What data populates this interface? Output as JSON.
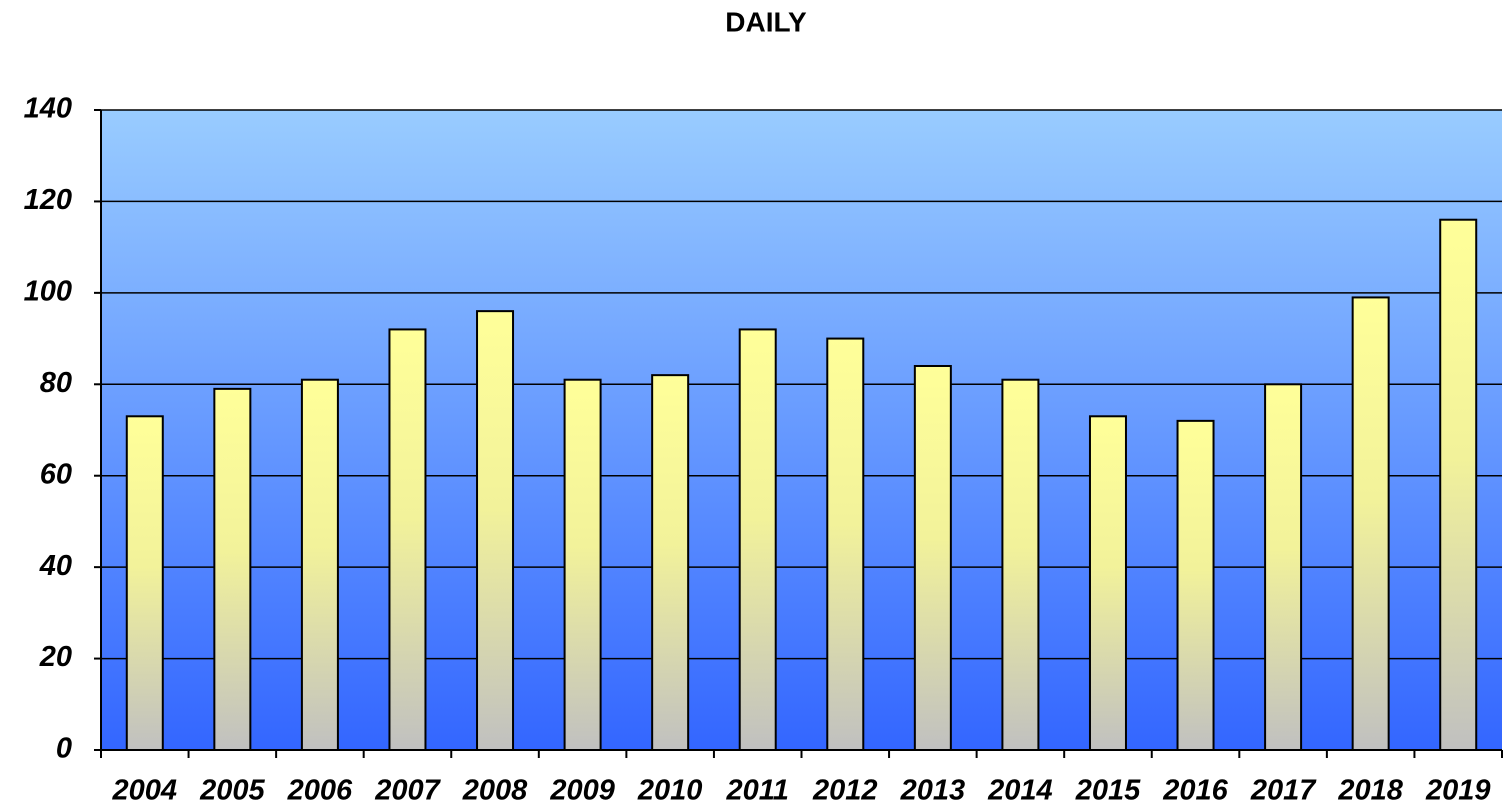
{
  "chart_data": {
    "type": "bar",
    "title": "DAILY",
    "categories": [
      "2004",
      "2005",
      "2006",
      "2007",
      "2008",
      "2009",
      "2010",
      "2011",
      "2012",
      "2013",
      "2014",
      "2015",
      "2016",
      "2017",
      "2018",
      "2019"
    ],
    "values": [
      73,
      79,
      81,
      92,
      96,
      81,
      82,
      92,
      90,
      84,
      81,
      73,
      72,
      80,
      99,
      116
    ],
    "color": "#ffff99",
    "ylim": [
      0,
      140
    ],
    "yticks": [
      0,
      20,
      40,
      60,
      80,
      100,
      120,
      140
    ],
    "grid": true
  }
}
